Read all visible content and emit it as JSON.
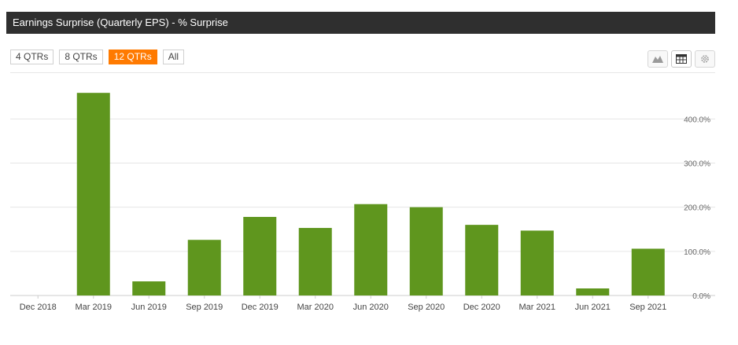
{
  "header": {
    "title": "Earnings Surprise (Quarterly EPS) - % Surprise"
  },
  "range_buttons": [
    {
      "label": "4 QTRs",
      "active": false
    },
    {
      "label": "8 QTRs",
      "active": false
    },
    {
      "label": "12 QTRs",
      "active": true
    },
    {
      "label": "All",
      "active": false
    }
  ],
  "toolbar": {
    "icons": [
      "area-chart-icon",
      "table-icon",
      "gear-icon"
    ]
  },
  "colors": {
    "bar": "#5f961e",
    "accent": "#ff7a00",
    "titlebar": "#2f2f2f"
  },
  "chart_data": {
    "type": "bar",
    "categories": [
      "Dec 2018",
      "Mar 2019",
      "Jun 2019",
      "Sep 2019",
      "Dec 2019",
      "Mar 2020",
      "Jun 2020",
      "Sep 2020",
      "Dec 2020",
      "Mar 2021",
      "Jun 2021",
      "Sep 2021"
    ],
    "values": [
      0,
      459,
      32,
      126,
      178,
      153,
      207,
      200,
      160,
      147,
      16,
      106
    ],
    "y_ticks": [
      "0.0%",
      "100.0%",
      "200.0%",
      "300.0%",
      "400.0%"
    ],
    "ylim": [
      0,
      470
    ],
    "grid": true,
    "y_axis_position": "right"
  }
}
